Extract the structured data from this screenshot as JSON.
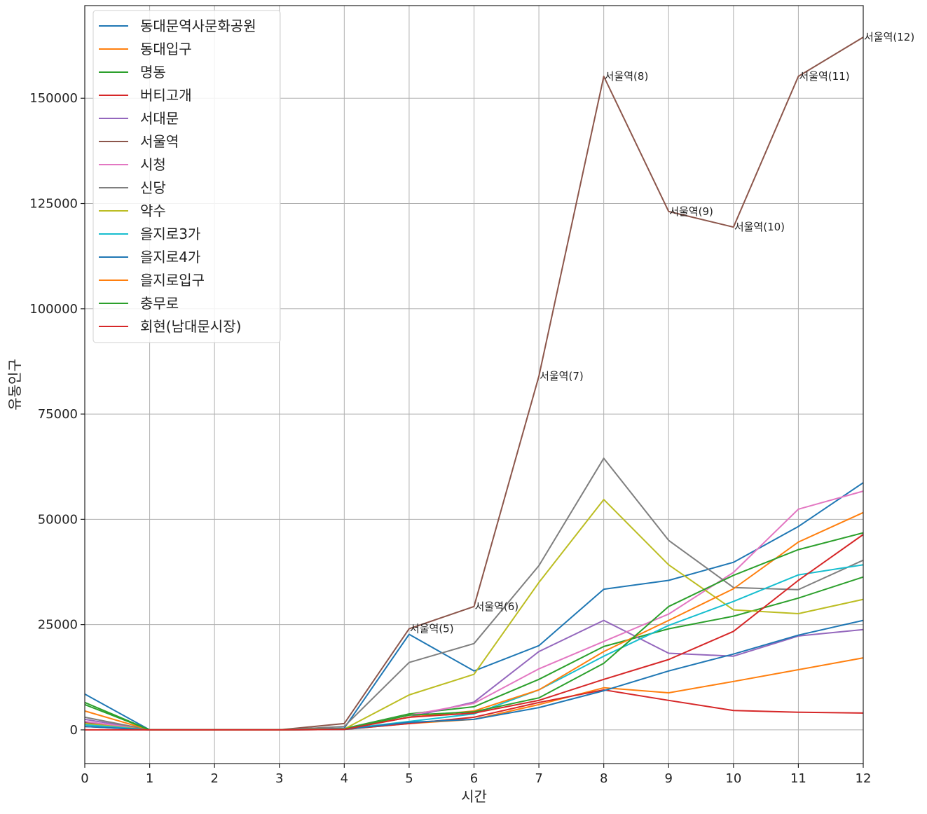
{
  "chart_data": {
    "type": "line",
    "title": "",
    "xlabel": "시간",
    "ylabel": "유동인구",
    "xlim": [
      0,
      12
    ],
    "ylim": [
      -8000,
      172000
    ],
    "x": [
      0,
      1,
      2,
      3,
      4,
      5,
      6,
      7,
      8,
      9,
      10,
      11,
      12
    ],
    "x_ticks": [
      "0",
      "1",
      "2",
      "3",
      "4",
      "5",
      "6",
      "7",
      "8",
      "9",
      "10",
      "11",
      "12"
    ],
    "y_ticks": [
      0,
      25000,
      50000,
      75000,
      100000,
      125000,
      150000
    ],
    "grid": true,
    "legend_position": "upper-left",
    "series": [
      {
        "name": "동대문역사문화공원",
        "color": "#1f77b4",
        "values": [
          8500,
          0,
          0,
          0,
          400,
          22700,
          14000,
          20000,
          33400,
          35500,
          39800,
          48300,
          58700
        ]
      },
      {
        "name": "동대입구",
        "color": "#ff7f0e",
        "values": [
          1500,
          0,
          0,
          0,
          100,
          1500,
          2500,
          6000,
          10000,
          8800,
          11500,
          14300,
          17100
        ]
      },
      {
        "name": "명동",
        "color": "#2ca02c",
        "values": [
          6500,
          0,
          0,
          0,
          300,
          3800,
          5500,
          12000,
          19800,
          24000,
          27000,
          31300,
          36300
        ]
      },
      {
        "name": "버티고개",
        "color": "#d62728",
        "values": [
          800,
          0,
          0,
          0,
          100,
          1500,
          3000,
          6500,
          9500,
          7000,
          4600,
          4200,
          4000
        ]
      },
      {
        "name": "서대문",
        "color": "#9467bd",
        "values": [
          2500,
          0,
          0,
          0,
          300,
          3000,
          6600,
          18600,
          26000,
          18200,
          17500,
          22300,
          23800
        ]
      },
      {
        "name": "서울역",
        "color": "#8c564b",
        "values": [
          1800,
          0,
          0,
          0,
          1500,
          24000,
          29300,
          84000,
          155200,
          123100,
          119400,
          155200,
          164500
        ]
      },
      {
        "name": "시청",
        "color": "#e377c2",
        "values": [
          2000,
          0,
          0,
          0,
          200,
          3500,
          6300,
          14500,
          21000,
          27500,
          37400,
          52400,
          56700
        ]
      },
      {
        "name": "신당",
        "color": "#7f7f7f",
        "values": [
          3000,
          0,
          0,
          0,
          800,
          16000,
          20500,
          39000,
          64500,
          45000,
          33800,
          33300,
          40300
        ]
      },
      {
        "name": "약수",
        "color": "#bcbd22",
        "values": [
          1500,
          0,
          0,
          0,
          200,
          8300,
          13200,
          35000,
          54700,
          39200,
          28500,
          27600,
          31000
        ]
      },
      {
        "name": "을지로3가",
        "color": "#17becf",
        "values": [
          1200,
          0,
          0,
          0,
          200,
          2000,
          3800,
          9500,
          17500,
          24800,
          30500,
          36800,
          39200
        ]
      },
      {
        "name": "을지로4가",
        "color": "#1f77b4",
        "values": [
          800,
          0,
          0,
          0,
          100,
          1800,
          2500,
          5300,
          9300,
          14000,
          18000,
          22500,
          26000
        ]
      },
      {
        "name": "을지로입구",
        "color": "#ff7f0e",
        "values": [
          4500,
          0,
          0,
          0,
          200,
          3000,
          4500,
          9500,
          18600,
          26000,
          33500,
          44600,
          51600
        ]
      },
      {
        "name": "충무로",
        "color": "#2ca02c",
        "values": [
          6000,
          0,
          0,
          0,
          200,
          3500,
          4300,
          7600,
          15800,
          29300,
          36700,
          42800,
          46800
        ]
      },
      {
        "name": "회현(남대문시장)",
        "color": "#d62728",
        "values": [
          0,
          0,
          0,
          0,
          100,
          3000,
          4000,
          7000,
          12000,
          16700,
          23400,
          35500,
          46400
        ]
      }
    ],
    "annotations": [
      {
        "text": "서울역(5)",
        "x": 5,
        "y": 24000
      },
      {
        "text": "서울역(6)",
        "x": 6,
        "y": 29300
      },
      {
        "text": "서울역(7)",
        "x": 7,
        "y": 84000
      },
      {
        "text": "서울역(8)",
        "x": 8,
        "y": 155200
      },
      {
        "text": "서울역(9)",
        "x": 9,
        "y": 123100
      },
      {
        "text": "서울역(10)",
        "x": 10,
        "y": 119400
      },
      {
        "text": "서울역(11)",
        "x": 11,
        "y": 155200
      },
      {
        "text": "서울역(12)",
        "x": 12,
        "y": 164500
      }
    ]
  }
}
